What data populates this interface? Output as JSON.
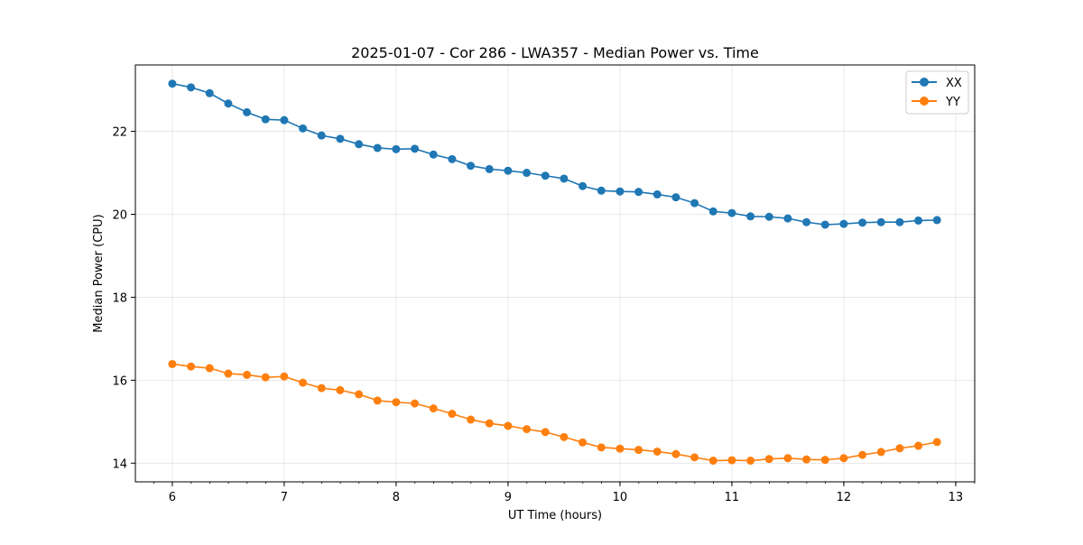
{
  "chart_data": {
    "type": "line",
    "title": "2025-01-07 - Cor 286 - LWA357 - Median Power vs. Time",
    "xlabel": "UT Time (hours)",
    "ylabel": "Median Power (CPU)",
    "xlim": [
      5.67,
      13.17
    ],
    "ylim": [
      13.55,
      23.6
    ],
    "xticks": [
      6,
      7,
      8,
      9,
      10,
      11,
      12,
      13
    ],
    "yticks": [
      14,
      16,
      18,
      20,
      22
    ],
    "x_minor_step": 0.1667,
    "grid": true,
    "legend_position": "top-right",
    "x": [
      6.0,
      6.1667,
      6.3333,
      6.5,
      6.6667,
      6.8333,
      7.0,
      7.1667,
      7.3333,
      7.5,
      7.6667,
      7.8333,
      8.0,
      8.1667,
      8.3333,
      8.5,
      8.6667,
      8.8333,
      9.0,
      9.1667,
      9.3333,
      9.5,
      9.6667,
      9.8333,
      10.0,
      10.1667,
      10.3333,
      10.5,
      10.6667,
      10.8333,
      11.0,
      11.1667,
      11.3333,
      11.5,
      11.6667,
      11.8333,
      12.0,
      12.1667,
      12.3333,
      12.5,
      12.6667,
      12.8333
    ],
    "series": [
      {
        "name": "XX",
        "color": "#1f77b4",
        "values": [
          23.15,
          23.06,
          22.92,
          22.67,
          22.46,
          22.29,
          22.27,
          22.07,
          21.9,
          21.82,
          21.69,
          21.6,
          21.57,
          21.58,
          21.44,
          21.33,
          21.17,
          21.09,
          21.05,
          21.0,
          20.93,
          20.86,
          20.68,
          20.57,
          20.55,
          20.54,
          20.48,
          20.41,
          20.27,
          20.07,
          20.03,
          19.95,
          19.94,
          19.9,
          19.81,
          19.75,
          19.77,
          19.8,
          19.81,
          19.81,
          19.85,
          19.86
        ]
      },
      {
        "name": "YY",
        "color": "#ff7f0e",
        "values": [
          16.39,
          16.33,
          16.29,
          16.16,
          16.13,
          16.07,
          16.09,
          15.94,
          15.81,
          15.76,
          15.66,
          15.51,
          15.47,
          15.44,
          15.32,
          15.19,
          15.05,
          14.96,
          14.9,
          14.82,
          14.75,
          14.63,
          14.5,
          14.38,
          14.35,
          14.32,
          14.28,
          14.22,
          14.14,
          14.06,
          14.07,
          14.06,
          14.1,
          14.12,
          14.09,
          14.08,
          14.12,
          14.2,
          14.27,
          14.36,
          14.42,
          14.51
        ]
      }
    ]
  }
}
